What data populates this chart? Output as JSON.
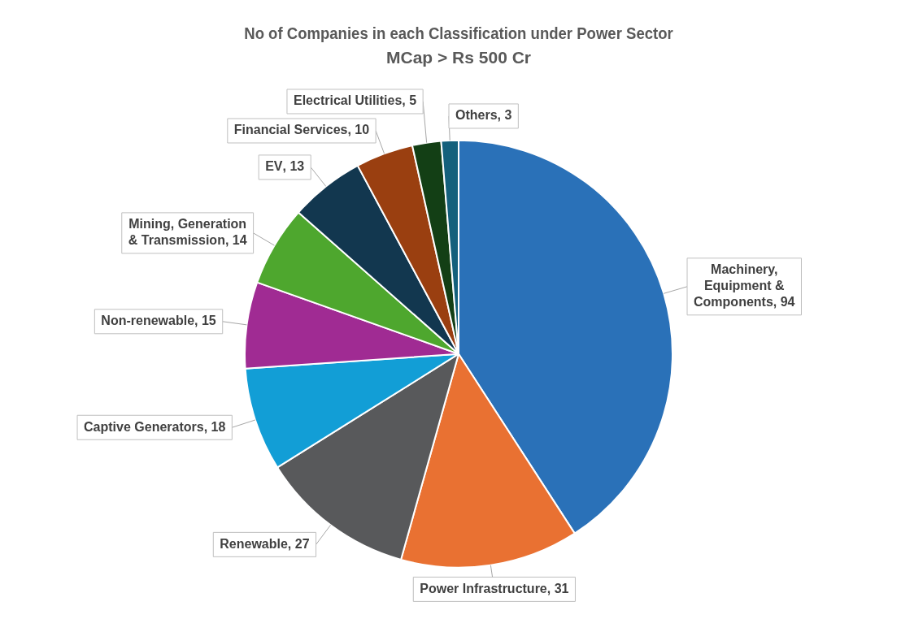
{
  "chart_data": {
    "type": "pie",
    "title": "No of Companies in each Classification under Power Sector",
    "subtitle": "MCap > Rs 500 Cr",
    "categories": [
      "Machinery, Equipment & Components",
      "Power Infrastructure",
      "Renewable",
      "Captive Generators",
      "Non-renewable",
      "Mining, Generation & Transmission",
      "EV",
      "Financial Services",
      "Electrical Utilities",
      "Others"
    ],
    "values": [
      94,
      31,
      27,
      18,
      15,
      14,
      13,
      10,
      5,
      3
    ],
    "colors": [
      "#2a71b8",
      "#e97132",
      "#58595b",
      "#129ed6",
      "#a02b93",
      "#4ea72e",
      "#12374f",
      "#9a3f10",
      "#133f15",
      "#14607c"
    ],
    "value_labels": [
      ", 94",
      ", 31",
      ", 27",
      ", 18",
      ", 15",
      ", 14",
      ", 13",
      ", 10",
      ", 5",
      ", 3"
    ]
  }
}
